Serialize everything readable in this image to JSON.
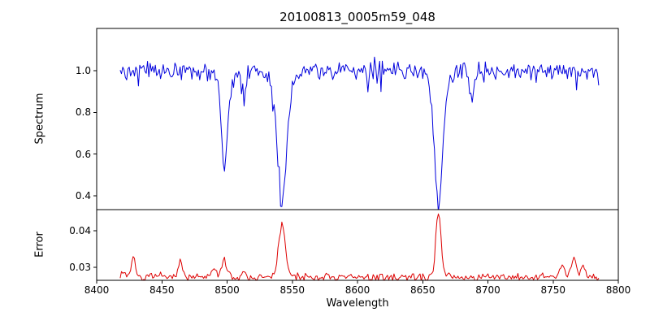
{
  "chart_data": {
    "type": "line",
    "title": "20100813_0005m59_048",
    "xlabel": "Wavelength",
    "xlim": [
      8400,
      8800
    ],
    "x_range": [
      8418,
      8785
    ],
    "x_step": 1,
    "grid": false,
    "legend": null,
    "x_ticks": [
      {
        "value": 8400,
        "label": "8400"
      },
      {
        "value": 8450,
        "label": "8450"
      },
      {
        "value": 8500,
        "label": "8500"
      },
      {
        "value": 8550,
        "label": "8550"
      },
      {
        "value": 8600,
        "label": "8600"
      },
      {
        "value": 8650,
        "label": "8650"
      },
      {
        "value": 8700,
        "label": "8700"
      },
      {
        "value": 8750,
        "label": "8750"
      },
      {
        "value": 8800,
        "label": "8800"
      }
    ],
    "panels": [
      {
        "name": "spectrum",
        "ylabel": "Spectrum",
        "color": "#0000dd",
        "ylim": [
          0.334,
          1.202
        ],
        "y_ticks": [
          {
            "value": 0.4,
            "label": "0.4"
          },
          {
            "value": 0.6,
            "label": "0.6"
          },
          {
            "value": 0.8,
            "label": "0.8"
          },
          {
            "value": 1.0,
            "label": "1.0"
          }
        ],
        "baseline": 1.0,
        "noise_amplitude": 0.05,
        "down_spike_prob": 0.04,
        "down_spike_max": 0.1,
        "up_spike_prob": 0.03,
        "up_spike_max": 0.06,
        "seed": 42,
        "features": [
          {
            "center": 8498.0,
            "amplitude": -0.42,
            "width": 2.4
          },
          {
            "center": 8498.0,
            "amplitude": -0.05,
            "width": 7.0
          },
          {
            "center": 8542.1,
            "amplitude": -0.6,
            "width": 3.4
          },
          {
            "center": 8542.1,
            "amplitude": -0.06,
            "width": 9.0
          },
          {
            "center": 8662.1,
            "amplitude": -0.59,
            "width": 3.0
          },
          {
            "center": 8662.1,
            "amplitude": -0.06,
            "width": 8.0
          },
          {
            "center": 8513.0,
            "amplitude": -0.09,
            "width": 1.3
          },
          {
            "center": 8688.0,
            "amplitude": -0.15,
            "width": 1.6
          }
        ]
      },
      {
        "name": "error",
        "ylabel": "Error",
        "color": "#dd0000",
        "ylim": [
          0.0264,
          0.0458
        ],
        "y_ticks": [
          {
            "value": 0.03,
            "label": "0.03"
          },
          {
            "value": 0.04,
            "label": "0.04"
          }
        ],
        "baseline": 0.0272,
        "noise_amplitude": 0.0012,
        "down_spike_prob": 0,
        "down_spike_max": 0,
        "up_spike_prob": 0.04,
        "up_spike_max": 0.0015,
        "seed": 7,
        "features": [
          {
            "center": 8420.0,
            "amplitude": 0.0015,
            "width": 2.0
          },
          {
            "center": 8428.0,
            "amplitude": 0.0055,
            "width": 1.6
          },
          {
            "center": 8464.0,
            "amplitude": 0.005,
            "width": 1.6
          },
          {
            "center": 8490.0,
            "amplitude": 0.002,
            "width": 2.0
          },
          {
            "center": 8498.0,
            "amplitude": 0.0045,
            "width": 2.2
          },
          {
            "center": 8513.0,
            "amplitude": 0.0018,
            "width": 1.5
          },
          {
            "center": 8542.1,
            "amplitude": 0.0145,
            "width": 2.6
          },
          {
            "center": 8662.1,
            "amplitude": 0.0185,
            "width": 2.0
          },
          {
            "center": 8757.0,
            "amplitude": 0.0035,
            "width": 2.0
          },
          {
            "center": 8766.0,
            "amplitude": 0.0055,
            "width": 1.8
          },
          {
            "center": 8773.0,
            "amplitude": 0.0035,
            "width": 1.5
          }
        ]
      }
    ]
  }
}
